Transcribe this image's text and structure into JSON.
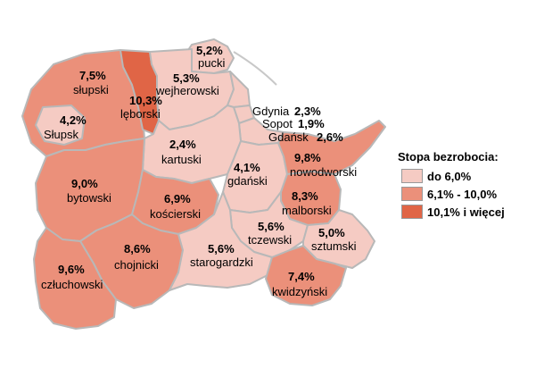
{
  "colors": {
    "low": "#f5cbc3",
    "mid": "#eb907a",
    "high": "#e06546",
    "border": "#b8b8b8",
    "sea_line": "#c8c8c8"
  },
  "legend": {
    "title": "Stopa bezrobocia:",
    "items": [
      {
        "label": "do 6,0%",
        "level": "low"
      },
      {
        "label": "6,1% - 10,0%",
        "level": "mid"
      },
      {
        "label": "10,1% i więcej",
        "level": "high"
      }
    ]
  },
  "regions": [
    {
      "name": "słupski",
      "value": "7,5%",
      "level": "mid"
    },
    {
      "name": "Słupsk",
      "value": "4,2%",
      "level": "low"
    },
    {
      "name": "lęborski",
      "value": "10,3%",
      "level": "high"
    },
    {
      "name": "pucki",
      "value": "5,2%",
      "level": "low"
    },
    {
      "name": "wejherowski",
      "value": "5,3%",
      "level": "low"
    },
    {
      "name": "Gdynia",
      "value": "2,3%",
      "level": "low"
    },
    {
      "name": "Sopot",
      "value": "1,9%",
      "level": "low"
    },
    {
      "name": "Gdańsk",
      "value": "2,6%",
      "level": "low"
    },
    {
      "name": "kartuski",
      "value": "2,4%",
      "level": "low"
    },
    {
      "name": "bytowski",
      "value": "9,0%",
      "level": "mid"
    },
    {
      "name": "gdański",
      "value": "4,1%",
      "level": "low"
    },
    {
      "name": "nowodworski",
      "value": "9,8%",
      "level": "mid"
    },
    {
      "name": "kościerski",
      "value": "6,9%",
      "level": "mid"
    },
    {
      "name": "malborski",
      "value": "8,3%",
      "level": "mid"
    },
    {
      "name": "tczewski",
      "value": "5,6%",
      "level": "low"
    },
    {
      "name": "sztumski",
      "value": "5,0%",
      "level": "low"
    },
    {
      "name": "chojnicki",
      "value": "8,6%",
      "level": "mid"
    },
    {
      "name": "starogardzki",
      "value": "5,6%",
      "level": "low"
    },
    {
      "name": "człuchowski",
      "value": "9,6%",
      "level": "mid"
    },
    {
      "name": "kwidzyński",
      "value": "7,4%",
      "level": "mid"
    }
  ]
}
